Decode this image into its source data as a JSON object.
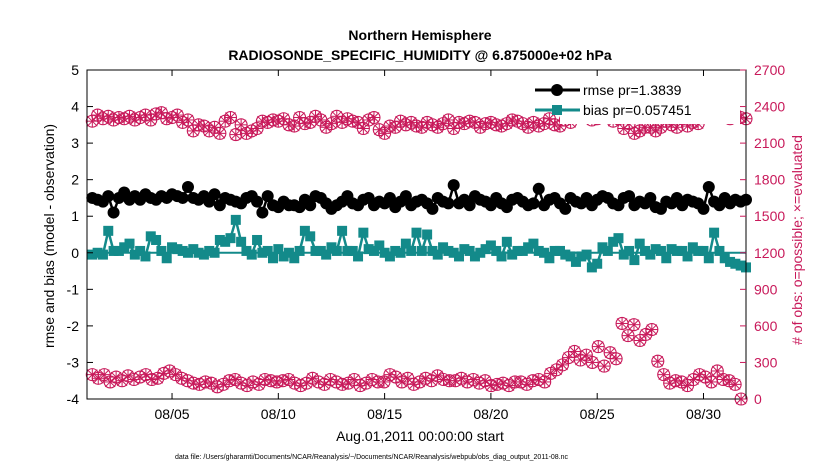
{
  "chart_data": {
    "type": "line",
    "title": "Northern Hemisphere",
    "subtitle": "RADIOSONDE_SPECIFIC_HUMIDITY @ 6.875000e+02 hPa",
    "xlabel": "Aug.01,2011 00:00:00 start",
    "ylabel_left": "rmse and bias (model - observation)",
    "ylabel_right": "# of obs: o=possible; ×=evaluated",
    "footer": "data file: /Users/gharamti/Documents/NCAR/Reanalysis/~/Documents/NCAR/Reanalysis/webpub/obs_diag_output_2011-08.nc",
    "xlim": [
      1,
      32
    ],
    "ylim_left": [
      -4,
      5
    ],
    "ylim_right": [
      0,
      2700
    ],
    "x_ticks": [
      5,
      10,
      15,
      20,
      25,
      30
    ],
    "x_tick_labels": [
      "08/05",
      "08/10",
      "08/15",
      "08/20",
      "08/25",
      "08/30"
    ],
    "y_left_ticks": [
      -4,
      -3,
      -2,
      -1,
      0,
      1,
      2,
      3,
      4,
      5
    ],
    "y_left_tick_labels": [
      "-4",
      "-3",
      "-2",
      "-1",
      "0",
      "1",
      "2",
      "3",
      "4",
      "5"
    ],
    "y_right_ticks": [
      0,
      300,
      600,
      900,
      1200,
      1500,
      1800,
      2100,
      2400,
      2700
    ],
    "y_right_tick_labels": [
      "0",
      "300",
      "600",
      "900",
      "1200",
      "1500",
      "1800",
      "2100",
      "2400",
      "2700"
    ],
    "x_start": 1.25,
    "x_step": 0.25,
    "series": [
      {
        "name": "rmse pr=1.3839",
        "axis": "left",
        "color": "#000000",
        "marker": "circle",
        "values": [
          1.5,
          1.45,
          1.4,
          1.55,
          1.1,
          1.5,
          1.65,
          1.45,
          1.55,
          1.45,
          1.6,
          1.5,
          1.45,
          1.55,
          1.5,
          1.6,
          1.55,
          1.5,
          1.8,
          1.5,
          1.45,
          1.55,
          1.4,
          1.6,
          1.3,
          1.5,
          1.45,
          1.4,
          1.35,
          1.5,
          1.55,
          1.4,
          1.1,
          1.55,
          1.3,
          1.25,
          1.4,
          1.3,
          1.3,
          1.25,
          1.45,
          1.3,
          1.55,
          1.5,
          1.35,
          1.2,
          1.3,
          1.4,
          1.55,
          1.35,
          1.3,
          1.45,
          1.5,
          1.3,
          1.4,
          1.35,
          1.5,
          1.25,
          1.4,
          1.55,
          1.3,
          1.4,
          1.45,
          1.35,
          1.2,
          1.5,
          1.4,
          1.35,
          1.85,
          1.35,
          1.45,
          1.3,
          1.55,
          1.45,
          1.4,
          1.3,
          1.5,
          1.35,
          1.25,
          1.45,
          1.5,
          1.4,
          1.3,
          1.35,
          1.75,
          1.3,
          1.45,
          1.5,
          1.35,
          1.2,
          1.5,
          1.4,
          1.35,
          1.5,
          1.3,
          1.45,
          1.55,
          1.5,
          1.35,
          1.3,
          1.5,
          1.55,
          1.3,
          1.4,
          1.35,
          1.5,
          1.25,
          1.2,
          1.4,
          1.35,
          1.5,
          1.3,
          1.45,
          1.4,
          1.35,
          1.2,
          1.8,
          1.4,
          1.3,
          1.5,
          1.35,
          1.45,
          1.4,
          1.45
        ]
      },
      {
        "name": "bias pr=0.057451",
        "axis": "left",
        "color": "#138a8a",
        "marker": "square",
        "values": [
          -0.05,
          0,
          -0.05,
          0.6,
          0.05,
          0.05,
          0.15,
          0.25,
          -0.05,
          0.05,
          -0.1,
          0.45,
          0.35,
          0.05,
          -0.15,
          0.15,
          0.1,
          0.05,
          0,
          0.1,
          0,
          -0.05,
          0.05,
          0,
          0.35,
          0.3,
          0.4,
          0.9,
          0.3,
          0.05,
          -0.05,
          0.35,
          0,
          0.05,
          -0.15,
          0.1,
          -0.1,
          0,
          -0.15,
          0.05,
          0.6,
          0.45,
          0.05,
          0.05,
          -0.05,
          0.15,
          0.05,
          0.6,
          0.05,
          0.05,
          -0.1,
          0.55,
          0.1,
          0.05,
          0.2,
          0,
          -0.1,
          0.05,
          0,
          0.25,
          0.05,
          0.55,
          0.05,
          0.5,
          0.05,
          -0.05,
          0.15,
          0.05,
          0,
          -0.1,
          0.1,
          0.05,
          -0.1,
          0,
          0.1,
          0.2,
          0.05,
          -0.1,
          0.3,
          -0.05,
          0.05,
          0.05,
          0.15,
          0.25,
          0.05,
          0,
          -0.15,
          0.05,
          0.05,
          -0.05,
          -0.1,
          -0.25,
          -0.1,
          -0.05,
          -0.4,
          -0.3,
          0.15,
          0.05,
          0.3,
          0.4,
          -0.05,
          0.05,
          -0.2,
          0.25,
          0.05,
          -0.05,
          0.1,
          0.05,
          -0.15,
          0.1,
          0.05,
          0.05,
          -0.1,
          0.15,
          0.05,
          0.05,
          -0.15,
          0.55,
          0.05,
          -0.15,
          -0.25,
          -0.3,
          -0.35,
          -0.4
        ]
      },
      {
        "name": "obs possible",
        "axis": "right",
        "color": "#c8195a",
        "marker": "circle-open",
        "values": [
          2280,
          2330,
          2300,
          2320,
          2290,
          2310,
          2300,
          2320,
          2290,
          2310,
          2330,
          2290,
          2340,
          2350,
          2300,
          2310,
          2330,
          2270,
          2290,
          2200,
          2250,
          2240,
          2200,
          2230,
          2180,
          2280,
          2310,
          2170,
          2250,
          2180,
          2200,
          2220,
          2280,
          2270,
          2290,
          2280,
          2300,
          2250,
          2240,
          2310,
          2260,
          2270,
          2320,
          2290,
          2230,
          2260,
          2320,
          2270,
          2300,
          2280,
          2270,
          2220,
          2290,
          2310,
          2210,
          2180,
          2240,
          2230,
          2280,
          2250,
          2270,
          2240,
          2230,
          2270,
          2250,
          2230,
          2260,
          2290,
          2220,
          2270,
          2260,
          2280,
          2270,
          2230,
          2260,
          2270,
          2250,
          2240,
          2260,
          2290,
          2280,
          2260,
          2230,
          2270,
          2240,
          2260,
          2300,
          2250,
          2240,
          2290,
          2270,
          2320,
          2330,
          2350,
          2290,
          2300,
          2370,
          2330,
          2280,
          2300,
          2220,
          2260,
          2180,
          2200,
          2230,
          2230,
          2200,
          2230,
          2280,
          2250,
          2230,
          2300,
          2240,
          2270,
          2260,
          2340,
          2320,
          2370,
          2380,
          2320,
          2300,
          2330,
          2310,
          2300
        ]
      },
      {
        "name": "obs evaluated",
        "axis": "right",
        "color": "#c8195a",
        "marker": "x",
        "values": [
          2280,
          2330,
          2300,
          2320,
          2290,
          2310,
          2300,
          2320,
          2290,
          2310,
          2330,
          2290,
          2340,
          2350,
          2300,
          2310,
          2330,
          2270,
          2290,
          2200,
          2250,
          2240,
          2200,
          2230,
          2180,
          2280,
          2310,
          2170,
          2250,
          2180,
          2200,
          2220,
          2280,
          2270,
          2290,
          2280,
          2300,
          2250,
          2240,
          2310,
          2260,
          2270,
          2320,
          2290,
          2230,
          2260,
          2320,
          2270,
          2300,
          2280,
          2270,
          2220,
          2290,
          2310,
          2210,
          2180,
          2240,
          2230,
          2280,
          2250,
          2270,
          2240,
          2230,
          2270,
          2250,
          2230,
          2260,
          2290,
          2220,
          2270,
          2260,
          2280,
          2270,
          2230,
          2260,
          2270,
          2250,
          2240,
          2260,
          2290,
          2280,
          2260,
          2230,
          2270,
          2240,
          2260,
          2300,
          2250,
          2240,
          2290,
          2270,
          2320,
          2330,
          2350,
          2290,
          2300,
          2370,
          2330,
          2280,
          2300,
          2220,
          2260,
          2180,
          2200,
          2230,
          2230,
          2200,
          2230,
          2280,
          2250,
          2230,
          2300,
          2240,
          2270,
          2260,
          2340,
          2320,
          2370,
          2380,
          2320,
          2300,
          2330,
          2310,
          2300
        ]
      },
      {
        "name": "obs possible (lower)",
        "axis": "right",
        "color": "#c8195a",
        "marker": "circle-open",
        "values": [
          200,
          170,
          200,
          140,
          180,
          150,
          190,
          160,
          180,
          200,
          160,
          170,
          210,
          230,
          200,
          170,
          150,
          130,
          120,
          140,
          130,
          100,
          120,
          150,
          160,
          130,
          110,
          140,
          120,
          160,
          150,
          140,
          150,
          160,
          130,
          110,
          130,
          170,
          140,
          120,
          160,
          140,
          120,
          130,
          160,
          110,
          130,
          160,
          140,
          140,
          200,
          180,
          140,
          170,
          120,
          140,
          170,
          150,
          190,
          160,
          150,
          150,
          170,
          140,
          160,
          130,
          150,
          110,
          120,
          130,
          110,
          140,
          140,
          120,
          150,
          160,
          140,
          210,
          240,
          280,
          340,
          390,
          320,
          360,
          300,
          430,
          270,
          380,
          330,
          620,
          520,
          610,
          480,
          530,
          570,
          310,
          200,
          130,
          150,
          140,
          110,
          160,
          200,
          180,
          140,
          230,
          160,
          150,
          120,
          0
        ]
      },
      {
        "name": "obs evaluated (lower)",
        "axis": "right",
        "color": "#c8195a",
        "marker": "x",
        "values": [
          200,
          170,
          200,
          140,
          180,
          150,
          190,
          160,
          180,
          200,
          160,
          170,
          210,
          230,
          200,
          170,
          150,
          130,
          120,
          140,
          130,
          100,
          120,
          150,
          160,
          130,
          110,
          140,
          120,
          160,
          150,
          140,
          150,
          160,
          130,
          110,
          130,
          170,
          140,
          120,
          160,
          140,
          120,
          130,
          160,
          110,
          130,
          160,
          140,
          140,
          200,
          180,
          140,
          170,
          120,
          140,
          170,
          150,
          190,
          160,
          150,
          150,
          170,
          140,
          160,
          130,
          150,
          110,
          120,
          130,
          110,
          140,
          140,
          120,
          150,
          160,
          140,
          210,
          240,
          280,
          340,
          390,
          320,
          360,
          300,
          430,
          270,
          380,
          330,
          620,
          520,
          610,
          480,
          530,
          570,
          310,
          200,
          130,
          150,
          140,
          110,
          160,
          200,
          180,
          140,
          230,
          160,
          150,
          120,
          0
        ]
      }
    ],
    "lower_x_start": 1.25,
    "lower_x_step": 0.28,
    "legend": [
      {
        "label": "rmse pr=1.3839",
        "color": "#000000",
        "marker": "circle"
      },
      {
        "label": "bias pr=0.057451",
        "color": "#138a8a",
        "marker": "square"
      }
    ],
    "legend_position": "top-right",
    "colors": {
      "left_axis": "#000000",
      "right_axis": "#c8195a",
      "zero_line": "#138a8a"
    }
  }
}
